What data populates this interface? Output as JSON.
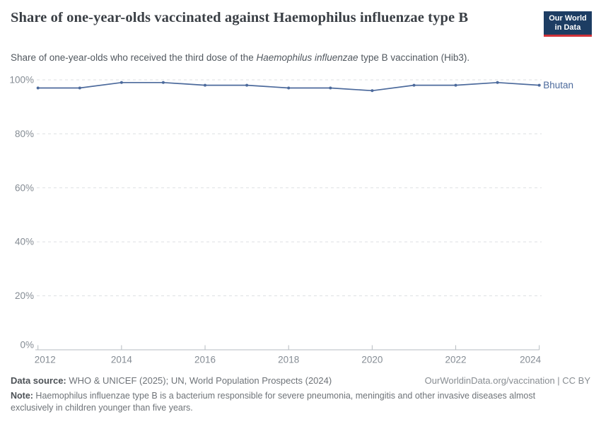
{
  "header": {
    "title": "Share of one-year-olds vaccinated against Haemophilus influenzae type B",
    "subtitle_prefix": "Share of one-year-olds who received the third dose of the ",
    "subtitle_italic": "Haemophilus influenzae",
    "subtitle_suffix": " type B vaccination (Hib3).",
    "logo_line1": "Our World",
    "logo_line2": "in Data"
  },
  "chart_data": {
    "type": "line",
    "title": "Share of one-year-olds vaccinated against Haemophilus influenzae type B",
    "x": [
      2012,
      2013,
      2014,
      2015,
      2016,
      2017,
      2018,
      2019,
      2020,
      2021,
      2022,
      2023,
      2024
    ],
    "series": [
      {
        "name": "Bhutan",
        "color": "#4c6a9c",
        "values": [
          97,
          97,
          99,
          99,
          98,
          98,
          97,
          97,
          96,
          98,
          98,
          99,
          98
        ]
      }
    ],
    "xlabel": "",
    "ylabel": "",
    "ylim": [
      0,
      100
    ],
    "yticks": [
      0,
      20,
      40,
      60,
      80,
      100
    ],
    "ytick_suffix": "%",
    "xticks": [
      2012,
      2014,
      2016,
      2018,
      2020,
      2022,
      2024
    ],
    "grid": "horizontal-dashed",
    "legend": "end-of-line-label"
  },
  "footer": {
    "datasource_label": "Data source:",
    "datasource_text": " WHO & UNICEF (2025); UN, World Population Prospects (2024)",
    "rights": "OurWorldinData.org/vaccination | CC BY",
    "note_label": "Note:",
    "note_text": " Haemophilus influenzae type B is a bacterium responsible for severe pneumonia, meningitis and other invasive diseases almost exclusively in children younger than five years."
  },
  "theme": {
    "line_color": "#4c6a9c",
    "grid_color": "#dde0e3",
    "axis_color": "#b6bbc0",
    "axis_text_color": "#858c94",
    "title_color": "#3a3f45",
    "logo_bg": "#1d3d63",
    "logo_red": "#d13239"
  }
}
